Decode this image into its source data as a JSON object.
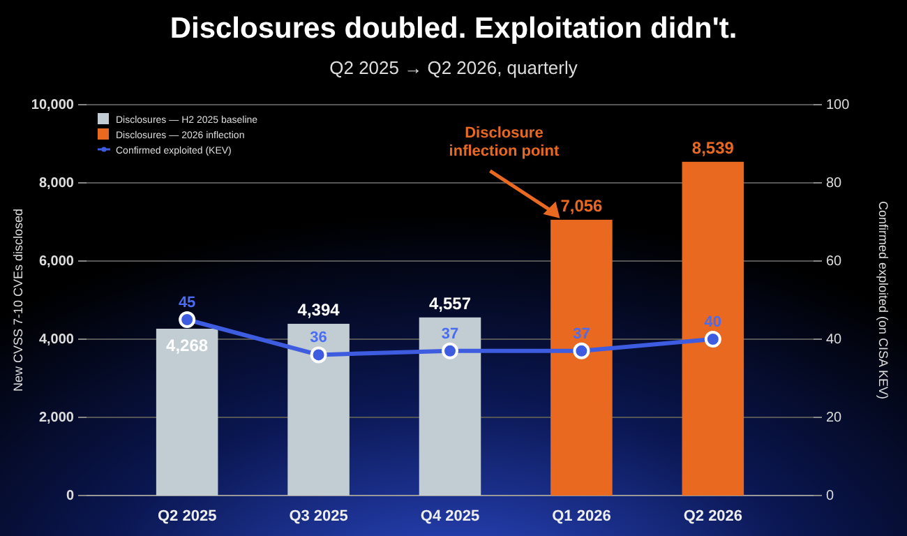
{
  "chart_data": {
    "type": "bar",
    "title": "Disclosures doubled. Exploitation didn't.",
    "subtitle": "Q2 2025 → Q2 2026, quarterly",
    "ylabel": "New CVSS 7-10 CVEs disclosed",
    "y2label": "Confirmed exploited (on CISA KEV)",
    "categories": [
      "Q2 2025",
      "Q3 2025",
      "Q4 2025",
      "Q1 2026",
      "Q2 2026"
    ],
    "series": [
      {
        "name": "Disclosures — H2 2025 baseline",
        "color": "#c1ccd3",
        "values": [
          4268,
          4394,
          4557,
          null,
          null
        ],
        "value_labels": [
          "4,268",
          "4,394",
          "4,557",
          null,
          null
        ]
      },
      {
        "name": "Disclosures — 2026 inflection",
        "color": "#e8691f",
        "values": [
          null,
          null,
          null,
          7056,
          8539
        ],
        "value_labels": [
          null,
          null,
          null,
          "7,056",
          "8,539"
        ]
      },
      {
        "name": "Confirmed exploited (KEV)",
        "type": "line",
        "axis": "y2",
        "color": "#3d5ce0",
        "values": [
          45,
          36,
          37,
          37,
          40
        ],
        "value_labels": [
          "45",
          "36",
          "37",
          "37",
          "40"
        ]
      }
    ],
    "ylim": [
      0,
      10000
    ],
    "yticks": [
      {
        "value": 0,
        "label": "0"
      },
      {
        "value": 2000,
        "label": "2,000"
      },
      {
        "value": 4000,
        "label": "4,000"
      },
      {
        "value": 6000,
        "label": "6,000"
      },
      {
        "value": 8000,
        "label": "8,000"
      },
      {
        "value": 10000,
        "label": "10,000"
      }
    ],
    "y2lim": [
      0,
      100
    ],
    "y2ticks": [
      0,
      20,
      40,
      60,
      80,
      100
    ],
    "grid": "y",
    "legend": "top left",
    "marker": "circle",
    "annotations": [
      "Disclosure inflection point"
    ]
  }
}
